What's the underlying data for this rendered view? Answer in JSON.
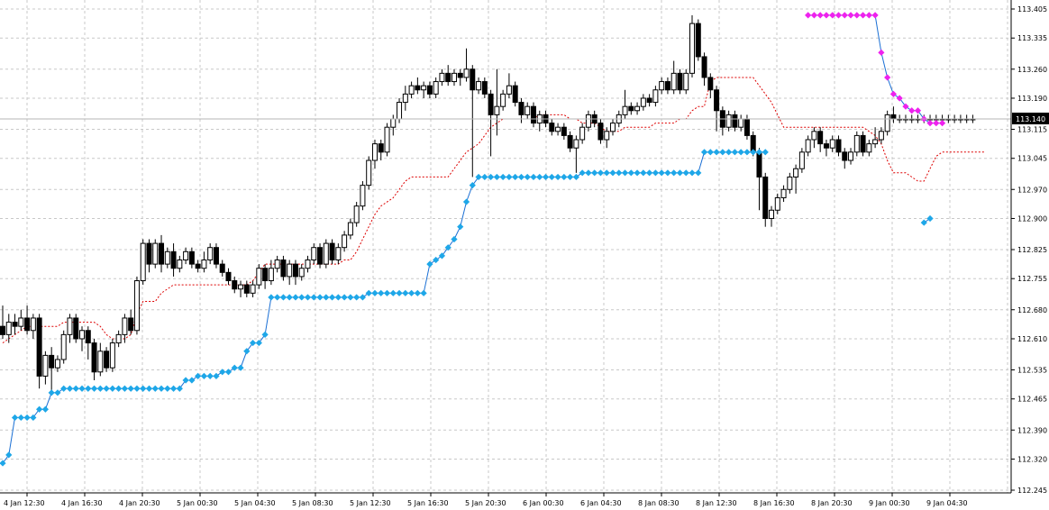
{
  "chart_data": {
    "type": "candlestick",
    "grid": true,
    "ylim": [
      112.245,
      113.44
    ],
    "y_ticks": [
      "113.405",
      "113.335",
      "113.260",
      "113.190",
      "113.115",
      "113.045",
      "112.970",
      "112.900",
      "112.825",
      "112.755",
      "112.680",
      "112.610",
      "112.535",
      "112.465",
      "112.390",
      "112.320",
      "112.245"
    ],
    "x_ticks": [
      "4 Jan 12:30",
      "4 Jan 16:30",
      "4 Jan 20:30",
      "5 Jan 00:30",
      "5 Jan 04:30",
      "5 Jan 08:30",
      "5 Jan 12:30",
      "5 Jan 16:30",
      "5 Jan 20:30",
      "6 Jan 00:30",
      "6 Jan 04:30",
      "8 Jan 08:30",
      "8 Jan 12:30",
      "8 Jan 16:30",
      "8 Jan 20:30",
      "9 Jan 00:30",
      "9 Jan 04:30"
    ],
    "current_price": "113.140",
    "candle_count": 160,
    "candles": [
      [
        112.64,
        112.62,
        112.69,
        112.61
      ],
      [
        112.62,
        112.65,
        112.67,
        112.6
      ],
      [
        112.65,
        112.64,
        112.67,
        112.62
      ],
      [
        112.64,
        112.66,
        112.68,
        112.63
      ],
      [
        112.66,
        112.63,
        112.69,
        112.62
      ],
      [
        112.63,
        112.66,
        112.67,
        112.61
      ],
      [
        112.66,
        112.52,
        112.67,
        112.49
      ],
      [
        112.52,
        112.57,
        112.58,
        112.5
      ],
      [
        112.57,
        112.54,
        112.59,
        112.48
      ],
      [
        112.54,
        112.56,
        112.57,
        112.53
      ],
      [
        112.56,
        112.62,
        112.63,
        112.55
      ],
      [
        112.62,
        112.66,
        112.67,
        112.6
      ],
      [
        112.66,
        112.61,
        112.67,
        112.6
      ],
      [
        112.61,
        112.63,
        112.64,
        112.58
      ],
      [
        112.63,
        112.6,
        112.64,
        112.56
      ],
      [
        112.6,
        112.53,
        112.61,
        112.51
      ],
      [
        112.53,
        112.58,
        112.6,
        112.52
      ],
      [
        112.58,
        112.54,
        112.59,
        112.53
      ],
      [
        112.54,
        112.6,
        112.61,
        112.53
      ],
      [
        112.6,
        112.62,
        112.63,
        112.59
      ],
      [
        112.62,
        112.66,
        112.67,
        112.6
      ],
      [
        112.66,
        112.63,
        112.68,
        112.62
      ],
      [
        112.63,
        112.75,
        112.76,
        112.62
      ],
      [
        112.75,
        112.84,
        112.85,
        112.74
      ],
      [
        112.84,
        112.79,
        112.85,
        112.77
      ],
      [
        112.79,
        112.84,
        112.85,
        112.78
      ],
      [
        112.84,
        112.79,
        112.86,
        112.77
      ],
      [
        112.79,
        112.82,
        112.83,
        112.78
      ],
      [
        112.82,
        112.78,
        112.84,
        112.76
      ],
      [
        112.78,
        112.8,
        112.81,
        112.77
      ],
      [
        112.8,
        112.82,
        112.83,
        112.79
      ],
      [
        112.82,
        112.79,
        112.83,
        112.78
      ],
      [
        112.79,
        112.78,
        112.8,
        112.77
      ],
      [
        112.78,
        112.8,
        112.82,
        112.77
      ],
      [
        112.8,
        112.83,
        112.84,
        112.79
      ],
      [
        112.83,
        112.79,
        112.84,
        112.78
      ],
      [
        112.79,
        112.77,
        112.8,
        112.76
      ],
      [
        112.77,
        112.75,
        112.78,
        112.74
      ],
      [
        112.75,
        112.73,
        112.76,
        112.72
      ],
      [
        112.73,
        112.74,
        112.75,
        112.71
      ],
      [
        112.74,
        112.72,
        112.75,
        112.71
      ],
      [
        112.72,
        112.74,
        112.75,
        112.71
      ],
      [
        112.74,
        112.78,
        112.79,
        112.73
      ],
      [
        112.78,
        112.75,
        112.79,
        112.73
      ],
      [
        112.75,
        112.78,
        112.8,
        112.74
      ],
      [
        112.78,
        112.8,
        112.81,
        112.77
      ],
      [
        112.8,
        112.76,
        112.81,
        112.75
      ],
      [
        112.76,
        112.79,
        112.8,
        112.74
      ],
      [
        112.79,
        112.76,
        112.8,
        112.74
      ],
      [
        112.76,
        112.78,
        112.79,
        112.75
      ],
      [
        112.78,
        112.8,
        112.81,
        112.77
      ],
      [
        112.8,
        112.83,
        112.84,
        112.79
      ],
      [
        112.83,
        112.79,
        112.84,
        112.78
      ],
      [
        112.79,
        112.84,
        112.85,
        112.78
      ],
      [
        112.84,
        112.8,
        112.85,
        112.79
      ],
      [
        112.8,
        112.83,
        112.84,
        112.79
      ],
      [
        112.83,
        112.86,
        112.87,
        112.82
      ],
      [
        112.86,
        112.89,
        112.9,
        112.85
      ],
      [
        112.89,
        112.93,
        112.94,
        112.88
      ],
      [
        112.93,
        112.98,
        112.99,
        112.92
      ],
      [
        112.98,
        113.04,
        113.05,
        112.97
      ],
      [
        113.04,
        113.08,
        113.09,
        113.02
      ],
      [
        113.08,
        113.06,
        113.09,
        113.04
      ],
      [
        113.06,
        113.12,
        113.13,
        113.05
      ],
      [
        113.12,
        113.14,
        113.15,
        113.1
      ],
      [
        113.14,
        113.18,
        113.19,
        113.13
      ],
      [
        113.18,
        113.2,
        113.22,
        113.16
      ],
      [
        113.2,
        113.22,
        113.23,
        113.19
      ],
      [
        113.22,
        113.21,
        113.24,
        113.2
      ],
      [
        113.21,
        113.22,
        113.23,
        113.19
      ],
      [
        113.22,
        113.2,
        113.23,
        113.19
      ],
      [
        113.2,
        113.23,
        113.24,
        113.19
      ],
      [
        113.23,
        113.25,
        113.26,
        113.22
      ],
      [
        113.25,
        113.23,
        113.27,
        113.22
      ],
      [
        113.23,
        113.25,
        113.26,
        113.22
      ],
      [
        113.25,
        113.24,
        113.26,
        113.22
      ],
      [
        113.24,
        113.26,
        113.31,
        113.23
      ],
      [
        113.26,
        113.21,
        113.27,
        113.0
      ],
      [
        113.21,
        113.23,
        113.24,
        113.2
      ],
      [
        113.23,
        113.2,
        113.24,
        113.19
      ],
      [
        113.2,
        113.15,
        113.21,
        113.05
      ],
      [
        113.15,
        113.17,
        113.26,
        113.1
      ],
      [
        113.17,
        113.2,
        113.21,
        113.16
      ],
      [
        113.2,
        113.22,
        113.25,
        113.19
      ],
      [
        113.22,
        113.18,
        113.23,
        113.17
      ],
      [
        113.18,
        113.15,
        113.19,
        113.13
      ],
      [
        113.15,
        113.17,
        113.18,
        113.14
      ],
      [
        113.17,
        113.13,
        113.18,
        113.12
      ],
      [
        113.13,
        113.15,
        113.16,
        113.11
      ],
      [
        113.15,
        113.13,
        113.16,
        113.12
      ],
      [
        113.13,
        113.11,
        113.14,
        113.1
      ],
      [
        113.11,
        113.12,
        113.13,
        113.1
      ],
      [
        113.12,
        113.1,
        113.13,
        113.09
      ],
      [
        113.1,
        113.07,
        113.11,
        113.06
      ],
      [
        113.07,
        113.09,
        113.1,
        113.01
      ],
      [
        113.09,
        113.12,
        113.13,
        113.08
      ],
      [
        113.12,
        113.15,
        113.16,
        113.11
      ],
      [
        113.15,
        113.13,
        113.16,
        113.12
      ],
      [
        113.13,
        113.09,
        113.14,
        113.08
      ],
      [
        113.09,
        113.11,
        113.12,
        113.07
      ],
      [
        113.11,
        113.13,
        113.14,
        113.1
      ],
      [
        113.13,
        113.15,
        113.16,
        113.12
      ],
      [
        113.15,
        113.17,
        113.21,
        113.14
      ],
      [
        113.17,
        113.16,
        113.18,
        113.15
      ],
      [
        113.16,
        113.17,
        113.18,
        113.15
      ],
      [
        113.17,
        113.19,
        113.2,
        113.16
      ],
      [
        113.19,
        113.18,
        113.2,
        113.17
      ],
      [
        113.18,
        113.21,
        113.22,
        113.17
      ],
      [
        113.21,
        113.23,
        113.24,
        113.2
      ],
      [
        113.23,
        113.21,
        113.24,
        113.2
      ],
      [
        113.21,
        113.25,
        113.28,
        113.2
      ],
      [
        113.25,
        113.21,
        113.26,
        113.2
      ],
      [
        113.21,
        113.25,
        113.26,
        113.2
      ],
      [
        113.25,
        113.37,
        113.39,
        113.24
      ],
      [
        113.37,
        113.29,
        113.38,
        113.28
      ],
      [
        113.29,
        113.24,
        113.3,
        113.22
      ],
      [
        113.24,
        113.21,
        113.25,
        113.19
      ],
      [
        113.21,
        113.16,
        113.22,
        113.11
      ],
      [
        113.16,
        113.12,
        113.17,
        113.1
      ],
      [
        113.12,
        113.15,
        113.16,
        113.11
      ],
      [
        113.15,
        113.12,
        113.16,
        113.11
      ],
      [
        113.12,
        113.14,
        113.15,
        113.11
      ],
      [
        113.14,
        113.1,
        113.15,
        113.09
      ],
      [
        113.1,
        113.06,
        113.11,
        113.05
      ],
      [
        113.06,
        113.0,
        113.07,
        112.92
      ],
      [
        113.0,
        112.9,
        113.01,
        112.88
      ],
      [
        112.9,
        112.92,
        112.93,
        112.88
      ],
      [
        112.92,
        112.95,
        112.96,
        112.91
      ],
      [
        112.95,
        112.97,
        112.98,
        112.94
      ],
      [
        112.97,
        113.0,
        113.01,
        112.96
      ],
      [
        113.0,
        113.02,
        113.03,
        112.96
      ],
      [
        113.02,
        113.06,
        113.07,
        113.01
      ],
      [
        113.06,
        113.09,
        113.1,
        113.05
      ],
      [
        113.09,
        113.11,
        113.12,
        113.07
      ],
      [
        113.11,
        113.08,
        113.12,
        113.06
      ],
      [
        113.08,
        113.07,
        113.09,
        113.05
      ],
      [
        113.07,
        113.09,
        113.1,
        113.06
      ],
      [
        113.09,
        113.06,
        113.1,
        113.05
      ],
      [
        113.06,
        113.04,
        113.07,
        113.02
      ],
      [
        113.04,
        113.06,
        113.07,
        113.03
      ],
      [
        113.06,
        113.1,
        113.11,
        113.05
      ],
      [
        113.1,
        113.06,
        113.11,
        113.05
      ],
      [
        113.06,
        113.08,
        113.09,
        113.05
      ],
      [
        113.08,
        113.09,
        113.12,
        113.07
      ],
      [
        113.09,
        113.11,
        113.12,
        113.08
      ],
      [
        113.11,
        113.15,
        113.16,
        113.1
      ],
      [
        113.15,
        113.14,
        113.17,
        113.13
      ],
      [
        113.14,
        113.14,
        113.15,
        113.13
      ],
      [
        113.14,
        113.14,
        113.15,
        113.13
      ],
      [
        113.14,
        113.14,
        113.15,
        113.13
      ],
      [
        113.14,
        113.14,
        113.15,
        113.13
      ],
      [
        113.14,
        113.14,
        113.15,
        113.13
      ],
      [
        113.14,
        113.14,
        113.15,
        113.13
      ],
      [
        113.14,
        113.14,
        113.15,
        113.13
      ],
      [
        113.14,
        113.14,
        113.15,
        113.13
      ],
      [
        113.14,
        113.14,
        113.15,
        113.13
      ],
      [
        113.14,
        113.14,
        113.15,
        113.13
      ],
      [
        113.14,
        113.14,
        113.15,
        113.13
      ],
      [
        113.14,
        113.14,
        113.15,
        113.13
      ],
      [
        113.14,
        113.14,
        113.15,
        113.13
      ]
    ],
    "stop_support": [
      112.31,
      112.33,
      112.42,
      112.42,
      112.42,
      112.42,
      112.44,
      112.44,
      112.48,
      112.48,
      112.49,
      112.49,
      112.49,
      112.49,
      112.49,
      112.49,
      112.49,
      112.49,
      112.49,
      112.49,
      112.49,
      112.49,
      112.49,
      112.49,
      112.49,
      112.49,
      112.49,
      112.49,
      112.49,
      112.49,
      112.51,
      112.51,
      112.52,
      112.52,
      112.52,
      112.52,
      112.53,
      112.53,
      112.54,
      112.54,
      112.58,
      112.6,
      112.6,
      112.62,
      112.71,
      112.71,
      112.71,
      112.71,
      112.71,
      112.71,
      112.71,
      112.71,
      112.71,
      112.71,
      112.71,
      112.71,
      112.71,
      112.71,
      112.71,
      112.71,
      112.72,
      112.72,
      112.72,
      112.72,
      112.72,
      112.72,
      112.72,
      112.72,
      112.72,
      112.72,
      112.79,
      112.8,
      112.81,
      112.83,
      112.85,
      112.88,
      112.94,
      112.98,
      113.0,
      113.0,
      113.0,
      113.0,
      113.0,
      113.0,
      113.0,
      113.0,
      113.0,
      113.0,
      113.0,
      113.0,
      113.0,
      113.0,
      113.0,
      113.0,
      113.0,
      113.01,
      113.01,
      113.01,
      113.01,
      113.01,
      113.01,
      113.01,
      113.01,
      113.01,
      113.01,
      113.01,
      113.01,
      113.01,
      113.01,
      113.01,
      113.01,
      113.01,
      113.01,
      113.01,
      113.01,
      113.06,
      113.06,
      113.06,
      113.06,
      113.06,
      113.06,
      113.06,
      113.06,
      113.06,
      113.06,
      113.06,
      null,
      null,
      null,
      null,
      null,
      null,
      null,
      null,
      null,
      null,
      null,
      null,
      null,
      null,
      null,
      null,
      null,
      null,
      null,
      null,
      null,
      null,
      null,
      null,
      null,
      112.89,
      112.9
    ],
    "stop_resistance_start": 132,
    "stop_resistance": [
      113.39,
      113.39,
      113.39,
      113.39,
      113.39,
      113.39,
      113.39,
      113.39,
      113.39,
      113.39,
      113.39,
      113.39,
      113.3,
      113.24,
      113.2,
      113.19,
      113.17,
      113.16,
      113.16,
      113.14,
      113.13,
      113.13,
      113.13
    ],
    "envelope": [
      112.6,
      112.61,
      112.62,
      112.63,
      112.64,
      112.64,
      112.64,
      112.64,
      112.64,
      112.64,
      112.65,
      112.65,
      112.65,
      112.65,
      112.65,
      112.65,
      112.64,
      112.62,
      112.61,
      112.61,
      112.61,
      112.62,
      112.67,
      112.7,
      112.7,
      112.7,
      112.72,
      112.73,
      112.74,
      112.74,
      112.74,
      112.74,
      112.74,
      112.74,
      112.74,
      112.74,
      112.74,
      112.74,
      112.74,
      112.74,
      112.74,
      112.75,
      112.77,
      112.79,
      112.79,
      112.79,
      112.79,
      112.79,
      112.79,
      112.79,
      112.79,
      112.79,
      112.79,
      112.79,
      112.79,
      112.79,
      112.8,
      112.8,
      112.82,
      112.85,
      112.88,
      112.91,
      112.93,
      112.94,
      112.95,
      112.97,
      112.99,
      113.0,
      113.0,
      113.0,
      113.0,
      113.0,
      113.0,
      113.0,
      113.02,
      113.04,
      113.06,
      113.07,
      113.08,
      113.1,
      113.12,
      113.13,
      113.14,
      113.14,
      113.14,
      113.14,
      113.14,
      113.14,
      113.15,
      113.15,
      113.15,
      113.15,
      113.15,
      113.14,
      113.14,
      113.13,
      113.13,
      113.13,
      113.12,
      113.11,
      113.11,
      113.11,
      113.12,
      113.12,
      113.12,
      113.12,
      113.12,
      113.13,
      113.13,
      113.13,
      113.13,
      113.14,
      113.14,
      113.16,
      113.17,
      113.17,
      113.23,
      113.24,
      113.24,
      113.24,
      113.24,
      113.24,
      113.24,
      113.24,
      113.22,
      113.2,
      113.18,
      113.15,
      113.12,
      113.12,
      113.12,
      113.12,
      113.12,
      113.12,
      113.12,
      113.12,
      113.12,
      113.12,
      113.12,
      113.12,
      113.12,
      113.12,
      113.11,
      113.1,
      113.08,
      113.04,
      113.01,
      113.01,
      113.01,
      113.0,
      112.99,
      112.99,
      113.02,
      113.05,
      113.06,
      113.06,
      113.06,
      113.06,
      113.06,
      113.06,
      113.06,
      113.06
    ]
  },
  "colors": {
    "background": "#ffffff",
    "grid": "#c8c8c8",
    "candle_up": "#ffffff",
    "candle_down": "#000000",
    "support_line": "#1a6fd4",
    "support_marker": "#1ea7e8",
    "resistance_marker": "#ee22ee",
    "envelope": "#dd0000",
    "current_price_line": "#b4b4b4",
    "current_price_bg": "#000000",
    "current_price_text": "#ffffff"
  },
  "icons": {
    "support_marker": "diamond-icon",
    "resistance_marker": "diamond-icon"
  }
}
